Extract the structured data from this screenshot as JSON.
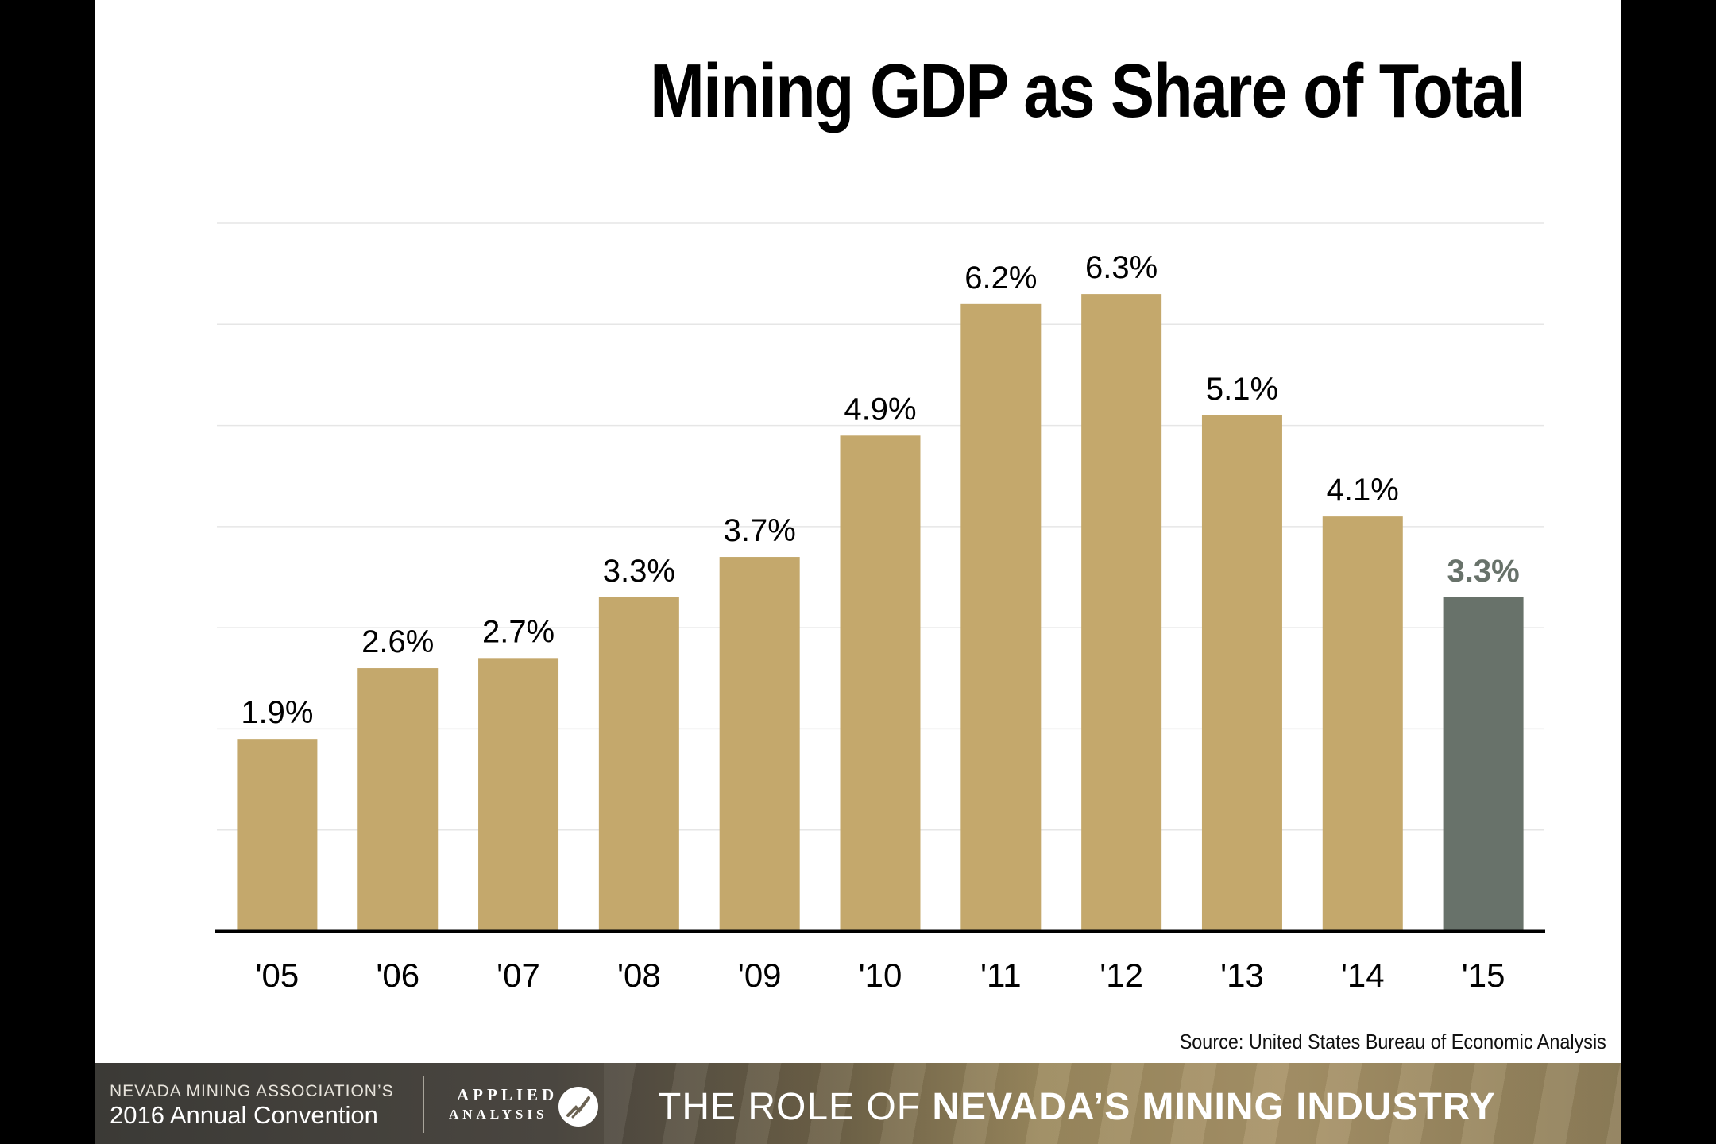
{
  "title": "Mining GDP as Share of Total",
  "source": "Source: United States Bureau of Economic Analysis",
  "footer": {
    "association": "NEVADA MINING ASSOCIATION’S",
    "convention": "2016 Annual Convention",
    "logo_top": "APPLIED",
    "logo_bottom": "ANALYSIS",
    "tagline_prefix": "THE ROLE OF",
    "tagline_bold": "NEVADA’S MINING INDUSTRY"
  },
  "chart_data": {
    "type": "bar",
    "title": "Mining GDP as Share of Total",
    "categories": [
      "'05",
      "'06",
      "'07",
      "'08",
      "'09",
      "'10",
      "'11",
      "'12",
      "'13",
      "'14",
      "'15"
    ],
    "values": [
      1.9,
      2.6,
      2.7,
      3.3,
      3.7,
      4.9,
      6.2,
      6.3,
      5.1,
      4.1,
      3.3
    ],
    "data_labels": [
      "1.9%",
      "2.6%",
      "2.7%",
      "3.3%",
      "3.7%",
      "4.9%",
      "6.2%",
      "6.3%",
      "5.1%",
      "4.1%",
      "3.3%"
    ],
    "ylim": [
      0,
      7
    ],
    "grid": true,
    "bar_color": "#c4a86c",
    "highlight_color": "#68726a",
    "highlight_index": 10
  }
}
